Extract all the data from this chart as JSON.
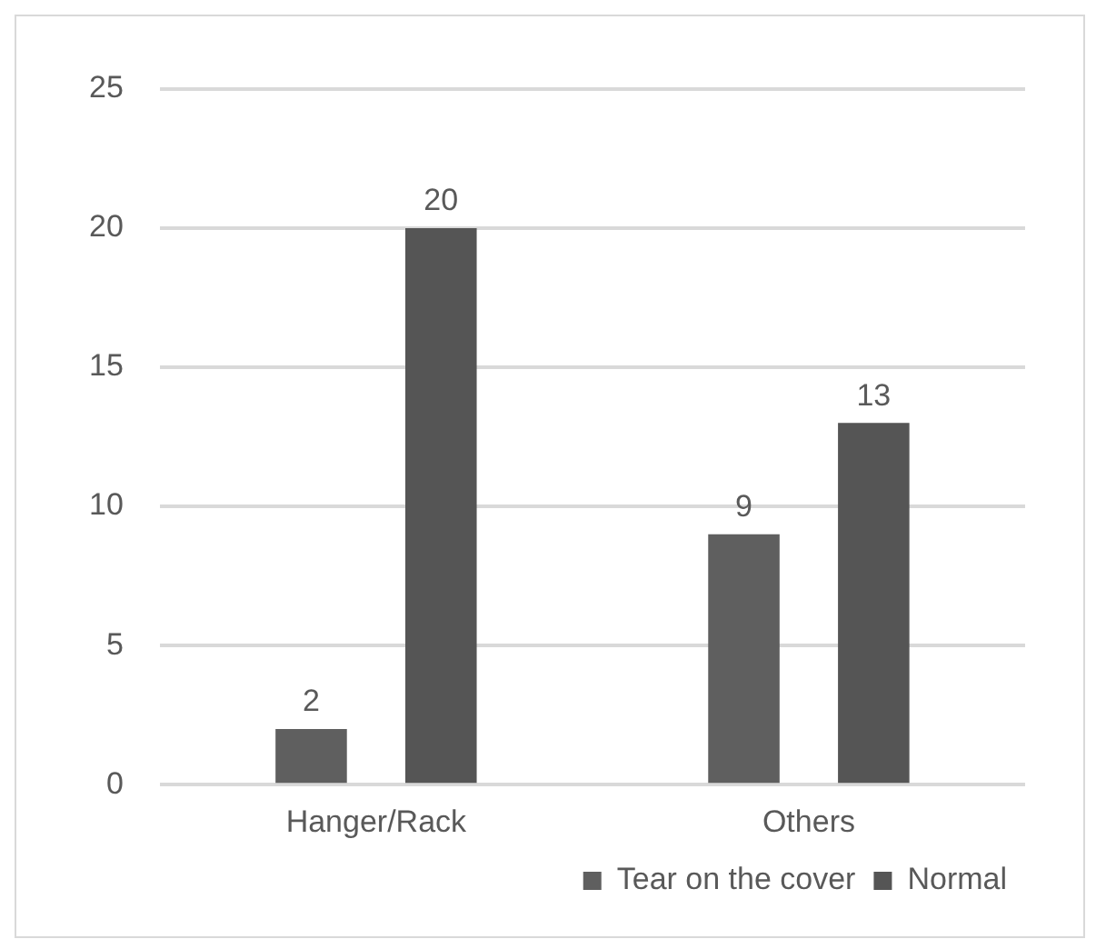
{
  "chart_data": {
    "type": "bar",
    "categories": [
      "Hanger/Rack",
      "Others"
    ],
    "series": [
      {
        "name": "Tear on the cover",
        "color": "#5f5f5f",
        "values": [
          2,
          9
        ]
      },
      {
        "name": "Normal",
        "color": "#555555",
        "values": [
          20,
          13
        ]
      }
    ],
    "ylim": [
      0,
      25
    ],
    "yticks": [
      0,
      5,
      10,
      15,
      20,
      25
    ],
    "grid": "y",
    "legend": "bottom right",
    "data_labels": true
  }
}
